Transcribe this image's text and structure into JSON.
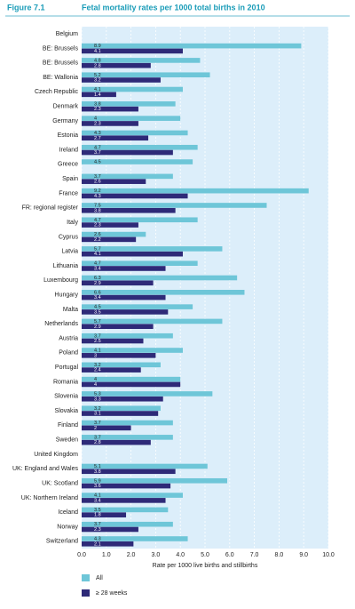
{
  "chart_data": {
    "type": "bar",
    "orientation": "horizontal",
    "figure_label": "Figure 7.1",
    "title": "Fetal mortality rates per 1000 total births in 2010",
    "x_label": "Rate per 1000 live births and stillbirths",
    "categories": [
      "Belgium",
      "BE: Brussels",
      "BE: Brussels",
      "BE: Wallonia",
      "Czech Republic",
      "Denmark",
      "Germany",
      "Estonia",
      "Ireland",
      "Greece",
      "Spain",
      "France",
      "FR: regional register",
      "Italy",
      "Cyprus",
      "Latvia",
      "Lithuania",
      "Luxembourg",
      "Hungary",
      "Malta",
      "Netherlands",
      "Austria",
      "Poland",
      "Portugal",
      "Romania",
      "Slovenia",
      "Slovakia",
      "Finland",
      "Sweden",
      "United Kingdom",
      "UK: England and Wales",
      "UK: Scotland",
      "UK: Northern Ireland",
      "Iceland",
      "Norway",
      "Switzerland"
    ],
    "series": [
      {
        "name": "All",
        "color": "#6ec6d8",
        "values": [
          null,
          8.9,
          4.8,
          5.2,
          4.1,
          3.8,
          4.0,
          4.3,
          4.7,
          4.5,
          3.7,
          9.2,
          7.5,
          4.7,
          2.6,
          5.7,
          4.7,
          6.3,
          6.6,
          4.5,
          5.7,
          3.7,
          4.1,
          3.2,
          4.0,
          5.3,
          3.2,
          3.7,
          3.7,
          null,
          5.1,
          5.9,
          4.1,
          3.5,
          3.7,
          4.3
        ]
      },
      {
        "name": "≥ 28 weeks",
        "color": "#2e2a78",
        "values": [
          null,
          4.1,
          2.8,
          3.2,
          1.4,
          2.3,
          2.3,
          2.7,
          3.7,
          null,
          2.6,
          4.3,
          3.8,
          2.3,
          2.2,
          4.1,
          3.4,
          2.9,
          3.4,
          3.5,
          2.9,
          2.5,
          3.0,
          2.4,
          4.0,
          3.3,
          3.1,
          2.0,
          2.8,
          null,
          3.8,
          3.6,
          3.4,
          1.8,
          2.3,
          2.1
        ]
      }
    ],
    "xlim": [
      0,
      10
    ],
    "xticks": [
      {
        "value": 0,
        "label": "0.0"
      },
      {
        "value": 1,
        "label": "1.0"
      },
      {
        "value": 2,
        "label": "2.0"
      },
      {
        "value": 3,
        "label": "3.0"
      },
      {
        "value": 4,
        "label": "4.0"
      },
      {
        "value": 5,
        "label": "5.0"
      },
      {
        "value": 6,
        "label": "6.0"
      },
      {
        "value": 7,
        "label": "7.0"
      },
      {
        "value": 8,
        "label": "8.0"
      },
      {
        "value": 9,
        "label": "9.0"
      },
      {
        "value": 10,
        "label": "10.0"
      }
    ],
    "grid": true
  }
}
